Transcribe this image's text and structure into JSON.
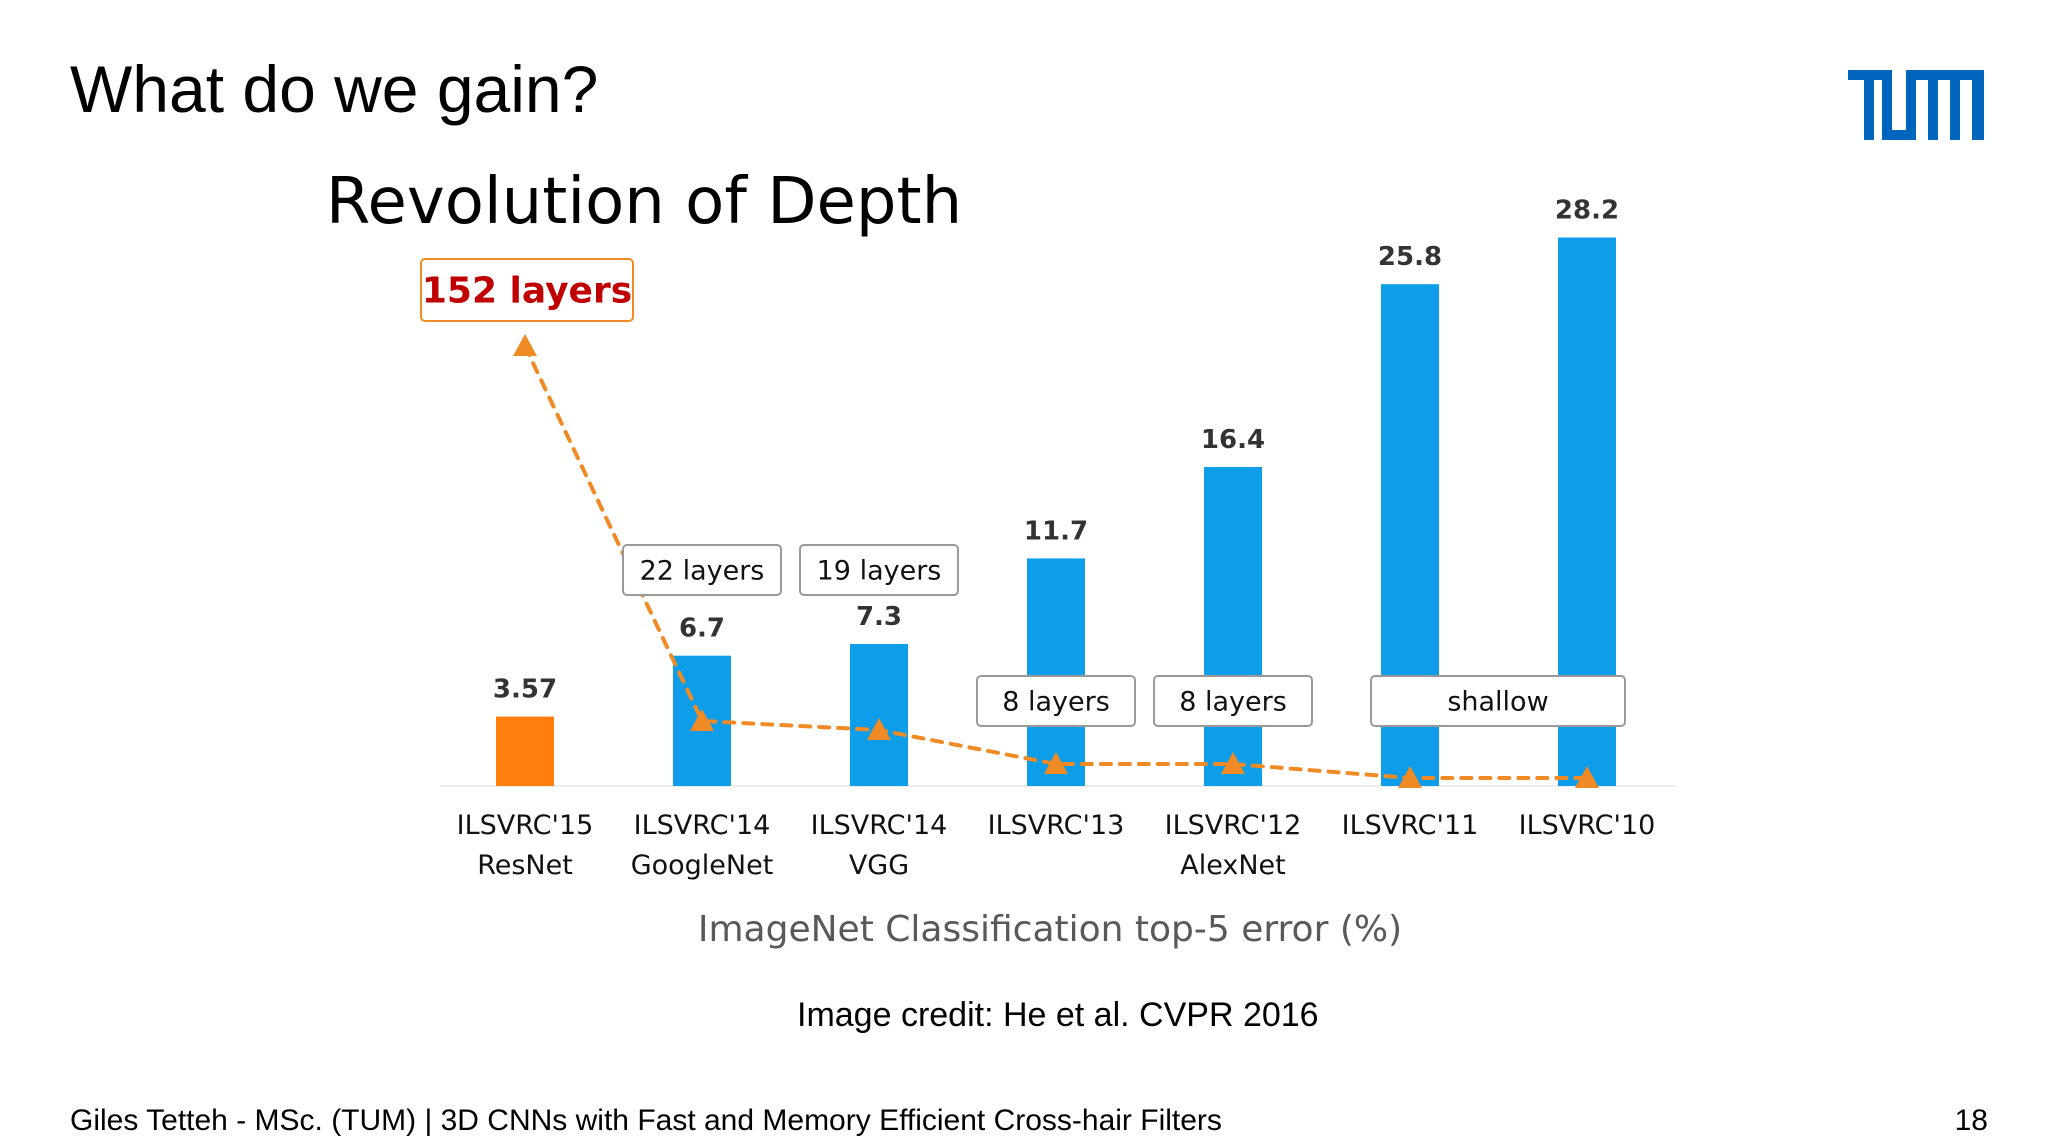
{
  "slide": {
    "title": "What do we gain?",
    "image_credit": "Image credit: He et al. CVPR 2016",
    "footer": "Giles Tetteh - MSc. (TUM) | 3D CNNs with Fast and Memory Efficient Cross-hair Filters",
    "page_number": "18"
  },
  "logo": {
    "text": "TUM",
    "color": "#0065BD"
  },
  "chart_data": {
    "type": "bar",
    "title": "Revolution of Depth",
    "xlabel": "ImageNet Classification top-5 error (%)",
    "ylabel": "",
    "ylim": [
      0,
      28.2
    ],
    "grid": false,
    "categories": [
      [
        "ILSVRC'15",
        "ResNet"
      ],
      [
        "ILSVRC'14",
        "GoogleNet"
      ],
      [
        "ILSVRC'14",
        "VGG"
      ],
      [
        "ILSVRC'13"
      ],
      [
        "ILSVRC'12",
        "AlexNet"
      ],
      [
        "ILSVRC'11"
      ],
      [
        "ILSVRC'10"
      ]
    ],
    "values": [
      3.57,
      6.7,
      7.3,
      11.7,
      16.4,
      25.8,
      28.2
    ],
    "value_labels": [
      "3.57",
      "6.7",
      "7.3",
      "11.7",
      "16.4",
      "25.8",
      "28.2"
    ],
    "bar_colors": [
      "#FF7F0E",
      "#0E9DE8",
      "#0E9DE8",
      "#0E9DE8",
      "#0E9DE8",
      "#0E9DE8",
      "#0E9DE8"
    ],
    "depth_labels": [
      {
        "text": "152 layers",
        "bar_index": 0,
        "highlight": true
      },
      {
        "text": "22 layers",
        "bar_index": 1
      },
      {
        "text": "19 layers",
        "bar_index": 2
      },
      {
        "text": "8 layers",
        "bar_index": 3
      },
      {
        "text": "8 layers",
        "bar_index": 4
      },
      {
        "text": "shallow",
        "bar_index": [
          5,
          6
        ]
      }
    ],
    "depth_line": {
      "style": "dashed",
      "marker": "triangle",
      "color": "#F08A24",
      "layers": [
        152,
        22,
        19,
        8,
        8,
        "shallow",
        "shallow"
      ]
    },
    "colors": {
      "bar": "#0E9DE8",
      "highlight_bar": "#FF7F0E",
      "highlight_text": "#C00000",
      "axis_text": "#111111",
      "xlabel_text": "#595959"
    }
  }
}
